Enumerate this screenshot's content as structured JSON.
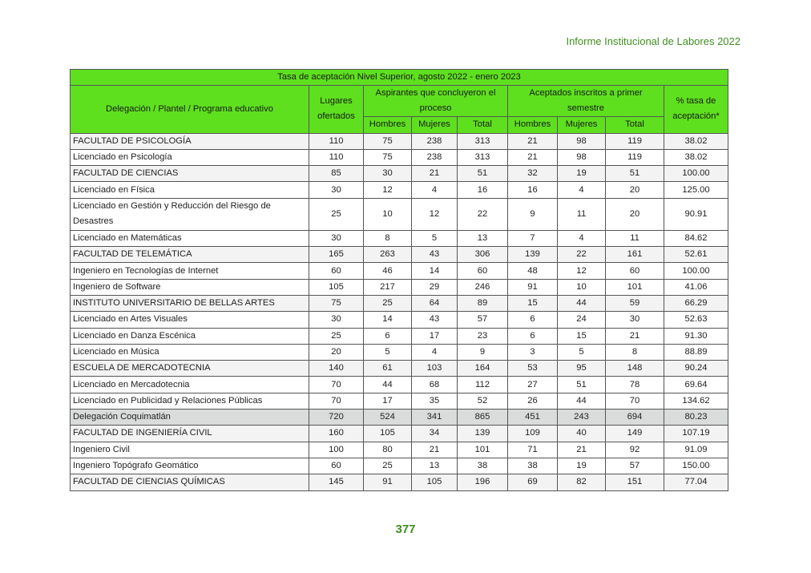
{
  "running_head": "Informe Institucional de Labores 2022",
  "page_number": "377",
  "table": {
    "title": "Tasa de aceptación Nivel Superior, agosto 2022 - enero 2023",
    "headers": {
      "program": "Delegación / Plantel / Programa educativo",
      "places": "Lugares ofertados",
      "applicants": "Aspirantes que concluyeron el proceso",
      "accepted": "Aceptados inscritos a primer semestre",
      "rate": "% tasa de aceptación*",
      "men": "Hombres",
      "women": "Mujeres",
      "total": "Total"
    },
    "rows": [
      {
        "type": "faculty",
        "name": "FACULTAD DE PSICOLOGÍA",
        "values": [
          "110",
          "75",
          "238",
          "313",
          "21",
          "98",
          "119",
          "38.02"
        ]
      },
      {
        "type": "program",
        "name": "Licenciado en Psicología",
        "values": [
          "110",
          "75",
          "238",
          "313",
          "21",
          "98",
          "119",
          "38.02"
        ]
      },
      {
        "type": "faculty",
        "name": "FACULTAD DE CIENCIAS",
        "values": [
          "85",
          "30",
          "21",
          "51",
          "32",
          "19",
          "51",
          "100.00"
        ]
      },
      {
        "type": "program",
        "name": "Licenciado en Física",
        "values": [
          "30",
          "12",
          "4",
          "16",
          "16",
          "4",
          "20",
          "125.00"
        ]
      },
      {
        "type": "program",
        "name": "Licenciado en Gestión y Reducción del Riesgo de Desastres",
        "values": [
          "25",
          "10",
          "12",
          "22",
          "9",
          "11",
          "20",
          "90.91"
        ]
      },
      {
        "type": "program",
        "name": "Licenciado en Matemáticas",
        "values": [
          "30",
          "8",
          "5",
          "13",
          "7",
          "4",
          "11",
          "84.62"
        ]
      },
      {
        "type": "faculty",
        "name": "FACULTAD DE TELEMÁTICA",
        "values": [
          "165",
          "263",
          "43",
          "306",
          "139",
          "22",
          "161",
          "52.61"
        ]
      },
      {
        "type": "program",
        "name": "Ingeniero en Tecnologías de Internet",
        "values": [
          "60",
          "46",
          "14",
          "60",
          "48",
          "12",
          "60",
          "100.00"
        ]
      },
      {
        "type": "program",
        "name": "Ingeniero de Software",
        "values": [
          "105",
          "217",
          "29",
          "246",
          "91",
          "10",
          "101",
          "41.06"
        ]
      },
      {
        "type": "faculty",
        "name": "INSTITUTO UNIVERSITARIO DE BELLAS ARTES",
        "values": [
          "75",
          "25",
          "64",
          "89",
          "15",
          "44",
          "59",
          "66.29"
        ]
      },
      {
        "type": "program",
        "name": "Licenciado en Artes Visuales",
        "values": [
          "30",
          "14",
          "43",
          "57",
          "6",
          "24",
          "30",
          "52.63"
        ]
      },
      {
        "type": "program",
        "name": "Licenciado en Danza Escénica",
        "values": [
          "25",
          "6",
          "17",
          "23",
          "6",
          "15",
          "21",
          "91.30"
        ]
      },
      {
        "type": "program",
        "name": "Licenciado en Música",
        "values": [
          "20",
          "5",
          "4",
          "9",
          "3",
          "5",
          "8",
          "88.89"
        ]
      },
      {
        "type": "faculty",
        "name": "ESCUELA DE MERCADOTECNIA",
        "values": [
          "140",
          "61",
          "103",
          "164",
          "53",
          "95",
          "148",
          "90.24"
        ]
      },
      {
        "type": "program",
        "name": "Licenciado en Mercadotecnia",
        "values": [
          "70",
          "44",
          "68",
          "112",
          "27",
          "51",
          "78",
          "69.64"
        ]
      },
      {
        "type": "program",
        "name": "Licenciado en Publicidad y Relaciones Públicas",
        "values": [
          "70",
          "17",
          "35",
          "52",
          "26",
          "44",
          "70",
          "134.62"
        ]
      },
      {
        "type": "delegacion",
        "name": "Delegación Coquimatlán",
        "values": [
          "720",
          "524",
          "341",
          "865",
          "451",
          "243",
          "694",
          "80.23"
        ]
      },
      {
        "type": "faculty",
        "name": "FACULTAD DE INGENIERÍA CIVIL",
        "values": [
          "160",
          "105",
          "34",
          "139",
          "109",
          "40",
          "149",
          "107.19"
        ]
      },
      {
        "type": "program",
        "name": "Ingeniero Civil",
        "values": [
          "100",
          "80",
          "21",
          "101",
          "71",
          "21",
          "92",
          "91.09"
        ]
      },
      {
        "type": "program",
        "name": "Ingeniero Topógrafo Geomático",
        "values": [
          "60",
          "25",
          "13",
          "38",
          "38",
          "19",
          "57",
          "150.00"
        ]
      },
      {
        "type": "faculty",
        "name": "FACULTAD DE CIENCIAS QUÍMICAS",
        "values": [
          "145",
          "91",
          "105",
          "196",
          "69",
          "82",
          "151",
          "77.04"
        ]
      }
    ]
  }
}
